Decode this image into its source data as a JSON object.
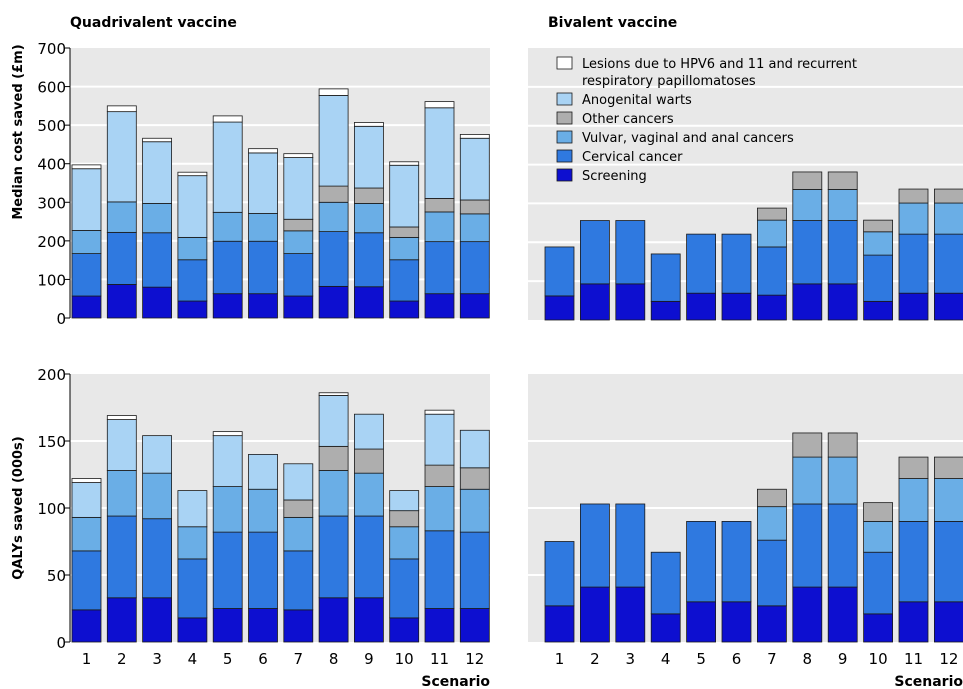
{
  "colors": {
    "screening": "#0d0fd0",
    "cervical": "#2f79e0",
    "vvac": "#6aaee6",
    "other": "#aeaeae",
    "warts": "#a9d3f4",
    "lesions": "#ffffff",
    "panel_bg": "#e8e8e8",
    "grid": "#ffffff"
  },
  "chart_data": [
    {
      "type": "bar",
      "stacked": true,
      "title": "Quadrivalent vaccine",
      "ylabel": "Median cost saved (£m)",
      "xlabel": "",
      "ylim": [
        0,
        700
      ],
      "yticks": [
        "0",
        "100",
        "200",
        "300",
        "400",
        "500",
        "600",
        "700"
      ],
      "categories": [
        "1",
        "2",
        "3",
        "4",
        "5",
        "6",
        "7",
        "8",
        "9",
        "10",
        "11",
        "12"
      ],
      "series": [
        {
          "name": "Screening",
          "color_key": "screening",
          "values": [
            57,
            87,
            80,
            44,
            63,
            63,
            57,
            82,
            81,
            44,
            63,
            63
          ]
        },
        {
          "name": "Cervical cancer",
          "color_key": "cervical",
          "values": [
            110,
            135,
            141,
            107,
            136,
            136,
            110,
            142,
            140,
            107,
            135,
            135
          ]
        },
        {
          "name": "Vulvar, vaginal and anal cancers",
          "color_key": "vvac",
          "values": [
            60,
            79,
            76,
            58,
            75,
            72,
            59,
            76,
            76,
            58,
            77,
            72
          ]
        },
        {
          "name": "Other cancers",
          "color_key": "other",
          "values": [
            0,
            0,
            0,
            0,
            0,
            0,
            30,
            42,
            40,
            27,
            35,
            36
          ]
        },
        {
          "name": "Anogenital warts",
          "color_key": "warts",
          "values": [
            160,
            234,
            160,
            160,
            234,
            157,
            160,
            235,
            160,
            160,
            235,
            160
          ]
        },
        {
          "name": "Lesions due to HPV6 and 11 and recurrent respiratory papillomatoses",
          "color_key": "lesions",
          "values": [
            10,
            15,
            9,
            9,
            16,
            11,
            10,
            17,
            10,
            9,
            16,
            10
          ]
        }
      ]
    },
    {
      "type": "bar",
      "stacked": true,
      "title": "Bivalent vaccine",
      "ylabel": "",
      "xlabel": "",
      "ylim": [
        0,
        700
      ],
      "categories": [
        "1",
        "2",
        "3",
        "4",
        "5",
        "6",
        "7",
        "8",
        "9",
        "10",
        "11",
        "12"
      ],
      "series": [
        {
          "name": "Screening",
          "color_key": "screening",
          "values": [
            62,
            93,
            93,
            48,
            69,
            69,
            64,
            93,
            93,
            48,
            69,
            69
          ]
        },
        {
          "name": "Cervical cancer",
          "color_key": "cervical",
          "values": [
            126,
            163,
            163,
            122,
            152,
            152,
            124,
            163,
            163,
            119,
            152,
            152
          ]
        },
        {
          "name": "Vulvar, vaginal and anal cancers",
          "color_key": "vvac",
          "values": [
            0,
            0,
            0,
            0,
            0,
            0,
            69,
            80,
            80,
            60,
            80,
            80
          ]
        },
        {
          "name": "Other cancers",
          "color_key": "other",
          "values": [
            0,
            0,
            0,
            0,
            0,
            0,
            31,
            45,
            45,
            30,
            36,
            36
          ]
        },
        {
          "name": "Anogenital warts",
          "color_key": "warts",
          "values": [
            0,
            0,
            0,
            0,
            0,
            0,
            0,
            0,
            0,
            0,
            0,
            0
          ]
        },
        {
          "name": "Lesions due to HPV6 and 11 and recurrent respiratory papillomatoses",
          "color_key": "lesions",
          "values": [
            0,
            0,
            0,
            0,
            0,
            0,
            0,
            0,
            0,
            0,
            0,
            0
          ]
        }
      ]
    },
    {
      "type": "bar",
      "stacked": true,
      "title": "",
      "ylabel": "QALYs saved (000s)",
      "xlabel": "",
      "ylim": [
        0,
        200
      ],
      "yticks": [
        "0",
        "50",
        "100",
        "150",
        "200"
      ],
      "categories": [
        "1",
        "2",
        "3",
        "4",
        "5",
        "6",
        "7",
        "8",
        "9",
        "10",
        "11",
        "12"
      ],
      "series": [
        {
          "name": "Screening",
          "color_key": "screening",
          "values": [
            24,
            33,
            33,
            18,
            25,
            25,
            24,
            33,
            33,
            18,
            25,
            25
          ]
        },
        {
          "name": "Cervical cancer",
          "color_key": "cervical",
          "values": [
            44,
            61,
            59,
            44,
            57,
            57,
            44,
            61,
            61,
            44,
            58,
            57
          ]
        },
        {
          "name": "Vulvar, vaginal and anal cancers",
          "color_key": "vvac",
          "values": [
            25,
            34,
            34,
            24,
            34,
            32,
            25,
            34,
            32,
            24,
            33,
            32
          ]
        },
        {
          "name": "Other cancers",
          "color_key": "other",
          "values": [
            0,
            0,
            0,
            0,
            0,
            0,
            13,
            18,
            18,
            12,
            16,
            16
          ]
        },
        {
          "name": "Anogenital warts",
          "color_key": "warts",
          "values": [
            26,
            38,
            28,
            27,
            38,
            26,
            27,
            38,
            26,
            15,
            38,
            28
          ]
        },
        {
          "name": "Lesions due to HPV6 and 11 and recurrent respiratory papillomatoses",
          "color_key": "lesions",
          "values": [
            3,
            3,
            0,
            0,
            3,
            0,
            0,
            2,
            0,
            0,
            3,
            0
          ]
        }
      ]
    },
    {
      "type": "bar",
      "stacked": true,
      "title": "",
      "ylabel": "",
      "xlabel": "Scenario",
      "ylim": [
        0,
        200
      ],
      "categories": [
        "1",
        "2",
        "3",
        "4",
        "5",
        "6",
        "7",
        "8",
        "9",
        "10",
        "11",
        "12"
      ],
      "series": [
        {
          "name": "Screening",
          "color_key": "screening",
          "values": [
            27,
            41,
            41,
            21,
            30,
            30,
            27,
            41,
            41,
            21,
            30,
            30
          ]
        },
        {
          "name": "Cervical cancer",
          "color_key": "cervical",
          "values": [
            48,
            62,
            62,
            46,
            60,
            60,
            49,
            62,
            62,
            46,
            60,
            60
          ]
        },
        {
          "name": "Vulvar, vaginal and anal cancers",
          "color_key": "vvac",
          "values": [
            0,
            0,
            0,
            0,
            0,
            0,
            25,
            35,
            35,
            23,
            32,
            32
          ]
        },
        {
          "name": "Other cancers",
          "color_key": "other",
          "values": [
            0,
            0,
            0,
            0,
            0,
            0,
            13,
            18,
            18,
            14,
            16,
            16
          ]
        },
        {
          "name": "Anogenital warts",
          "color_key": "warts",
          "values": [
            0,
            0,
            0,
            0,
            0,
            0,
            0,
            0,
            0,
            0,
            0,
            0
          ]
        },
        {
          "name": "Lesions due to HPV6 and 11 and recurrent respiratory papillomatoses",
          "color_key": "lesions",
          "values": [
            0,
            0,
            0,
            0,
            0,
            0,
            0,
            0,
            0,
            0,
            0,
            0
          ]
        }
      ]
    }
  ],
  "legend": {
    "placement": "top-right panel, upper left",
    "items": [
      {
        "color_key": "lesions",
        "lines": [
          "Lesions due to HPV6 and 11 and recurrent",
          "respiratory papillomatoses"
        ]
      },
      {
        "color_key": "warts",
        "lines": [
          "Anogenital warts"
        ]
      },
      {
        "color_key": "other",
        "lines": [
          "Other cancers"
        ]
      },
      {
        "color_key": "vvac",
        "lines": [
          "Vulvar, vaginal and anal cancers"
        ]
      },
      {
        "color_key": "cervical",
        "lines": [
          "Cervical cancer"
        ]
      },
      {
        "color_key": "screening",
        "lines": [
          "Screening"
        ]
      }
    ]
  }
}
